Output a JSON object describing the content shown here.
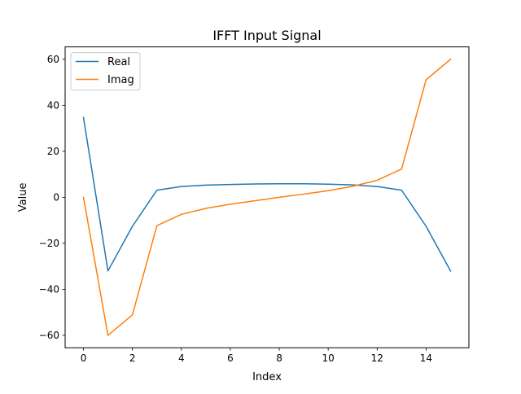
{
  "chart_data": {
    "type": "line",
    "title": "IFFT Input Signal",
    "xlabel": "Index",
    "ylabel": "Value",
    "xlim": [
      -0.75,
      15.75
    ],
    "ylim": [
      -65.4,
      65.4
    ],
    "x_ticks": [
      0,
      2,
      4,
      6,
      8,
      10,
      12,
      14
    ],
    "x_tick_labels": [
      "0",
      "2",
      "4",
      "6",
      "8",
      "10",
      "12",
      "14"
    ],
    "y_ticks": [
      -60,
      -40,
      -20,
      0,
      20,
      40,
      60
    ],
    "y_tick_labels": [
      "−60",
      "−40",
      "−20",
      "0",
      "20",
      "40",
      "60"
    ],
    "grid": false,
    "legend_position": "upper-left",
    "x": [
      0,
      1,
      2,
      3,
      4,
      5,
      6,
      7,
      8,
      9,
      10,
      11,
      12,
      13,
      14,
      15
    ],
    "series": [
      {
        "name": "Real",
        "color": "#1f77b4",
        "values": [
          34.7,
          -32.0,
          -12.6,
          3.1,
          4.7,
          5.3,
          5.6,
          5.8,
          5.9,
          5.9,
          5.7,
          5.4,
          4.7,
          3.1,
          -12.6,
          -32.0
        ]
      },
      {
        "name": "Imag",
        "color": "#ff7f0e",
        "values": [
          0.0,
          -60.0,
          -51.1,
          -12.3,
          -7.4,
          -4.8,
          -3.0,
          -1.5,
          0.0,
          1.4,
          2.9,
          4.8,
          7.4,
          12.3,
          51.1,
          60.0
        ]
      }
    ]
  }
}
